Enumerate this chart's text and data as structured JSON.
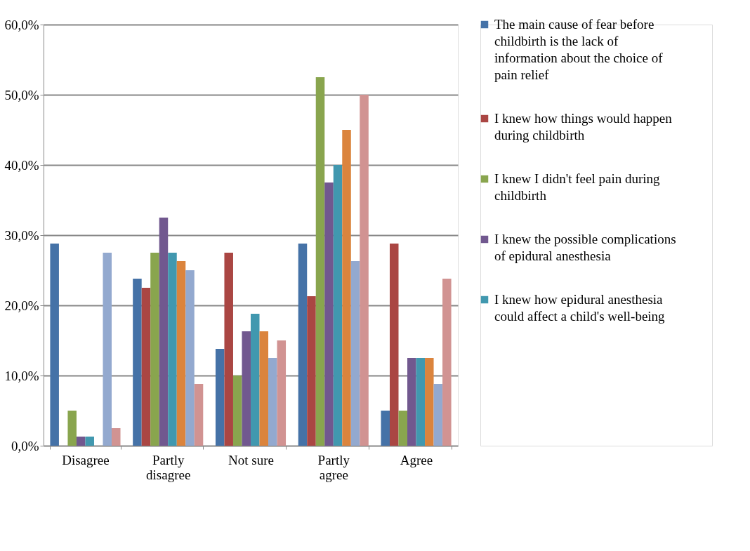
{
  "chart_data": {
    "type": "bar",
    "categories": [
      "Disagree",
      "Partly disagree",
      "Not sure",
      "Partly agree",
      "Agree"
    ],
    "series": [
      {
        "name": "The main cause of fear before childbirth is the lack of information about the choice of pain relief",
        "color": "#4572a7",
        "values": [
          28.8,
          23.8,
          13.8,
          28.8,
          5.0
        ]
      },
      {
        "name": "I knew how things would happen during childbirth",
        "color": "#aa4643",
        "values": [
          0,
          22.5,
          27.5,
          21.3,
          28.8
        ]
      },
      {
        "name": "I knew I didn't feel pain during childbirth",
        "color": "#89a54e",
        "values": [
          5.0,
          27.5,
          10.0,
          52.5,
          5.0
        ]
      },
      {
        "name": "I knew the possible complications of epidural anesthesia",
        "color": "#71588f",
        "values": [
          1.3,
          32.5,
          16.3,
          37.5,
          12.5
        ]
      },
      {
        "name": "I knew how epidural anesthesia could affect a child's well-being",
        "color": "#4198af",
        "values": [
          1.3,
          27.5,
          18.8,
          40.0,
          12.5
        ]
      },
      {
        "color": "#db843d",
        "values": [
          0,
          26.3,
          16.3,
          45.0,
          12.5
        ]
      },
      {
        "color": "#93a9cf",
        "values": [
          27.5,
          25.0,
          12.5,
          26.3,
          8.8
        ]
      },
      {
        "color": "#d19392",
        "values": [
          2.5,
          8.8,
          15.0,
          50.0,
          23.8
        ]
      }
    ],
    "ylim": [
      0,
      60
    ],
    "yticks": [
      {
        "value": 0,
        "label": "0,0%"
      },
      {
        "value": 10,
        "label": "10,0%"
      },
      {
        "value": 20,
        "label": "20,0%"
      },
      {
        "value": 30,
        "label": "30,0%"
      },
      {
        "value": 40,
        "label": "40,0%"
      },
      {
        "value": 50,
        "label": "50,0%"
      },
      {
        "value": 60,
        "label": "60,0%"
      }
    ],
    "grid": "y",
    "legend": "right"
  }
}
